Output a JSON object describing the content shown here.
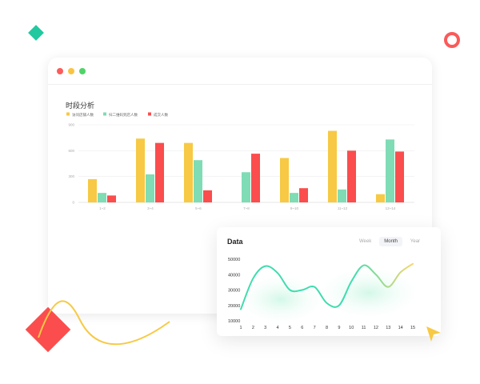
{
  "bar_chart": {
    "title": "时段分析",
    "legend": [
      "访问店铺人数",
      "扫二维码到店人数",
      "成交人数"
    ],
    "colors": [
      "#f7c944",
      "#7fdcb4",
      "#fb4d4d"
    ],
    "y_ticks": [
      "0",
      "300",
      "600",
      "900"
    ],
    "categories": [
      "1~2",
      "3~4",
      "5~6",
      "7~8",
      "9~10",
      "11~12",
      "13~14"
    ]
  },
  "line_card": {
    "title": "Data",
    "tabs": [
      "Week",
      "Month",
      "Year"
    ],
    "active_tab": "Month",
    "y_ticks": [
      "10000",
      "20000",
      "30000",
      "40000",
      "50000"
    ],
    "x_ticks": [
      "1",
      "2",
      "3",
      "4",
      "5",
      "6",
      "7",
      "8",
      "9",
      "10",
      "11",
      "12",
      "13",
      "14",
      "15"
    ]
  },
  "chart_data": [
    {
      "type": "bar",
      "title": "时段分析",
      "categories": [
        "1~2",
        "3~4",
        "5~6",
        "7~8",
        "9~10",
        "11~12",
        "13~14"
      ],
      "ylim": [
        0,
        900
      ],
      "series": [
        {
          "name": "访问店铺人数",
          "values": [
            270,
            740,
            690,
            0,
            515,
            830,
            95
          ]
        },
        {
          "name": "扫二维码到店人数",
          "values": [
            110,
            325,
            490,
            350,
            110,
            150,
            730
          ]
        },
        {
          "name": "成交人数",
          "values": [
            80,
            690,
            140,
            565,
            165,
            600,
            590
          ]
        }
      ],
      "legend": "top-left",
      "grid": true
    },
    {
      "type": "line",
      "title": "Data",
      "x": [
        1,
        2,
        3,
        4,
        5,
        6,
        7,
        8,
        9,
        10,
        11,
        12,
        13,
        14,
        15
      ],
      "ylim": [
        10000,
        50000
      ],
      "series": [
        {
          "values": [
            17500,
            37500,
            45500,
            41000,
            30000,
            30000,
            32000,
            21500,
            20000,
            35500,
            46000,
            40000,
            32000,
            41500,
            47000
          ]
        }
      ],
      "grid": false
    }
  ]
}
